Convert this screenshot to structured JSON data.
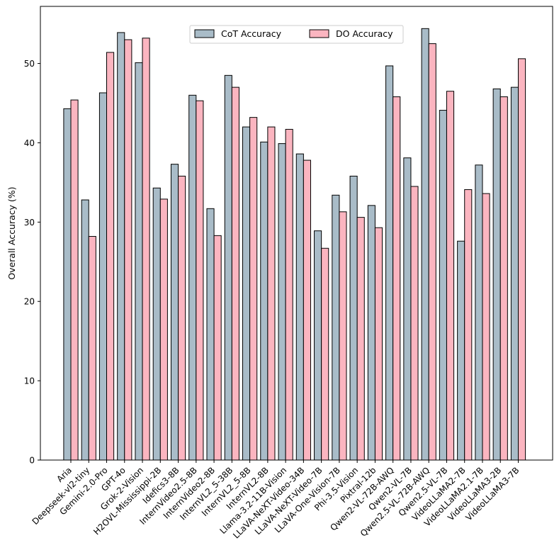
{
  "chart_data": {
    "type": "bar",
    "title": "",
    "xlabel": "",
    "ylabel": "Overall Accuracy (%)",
    "ylim": [
      0,
      57.2
    ],
    "yticks": [
      0,
      10,
      20,
      30,
      40,
      50
    ],
    "grid": false,
    "legend_position": "top-center",
    "categories": [
      "Aria",
      "Deepseek-vl2-tiny",
      "Gemini-2.0-Pro",
      "GPT-4o",
      "Grok-2-Vision",
      "H2OVL-Mississippi-2B",
      "Idefics3-8B",
      "InternVideo2.5-8B",
      "InternVideo2-8B",
      "InternVL2_5-38B",
      "InternVL2_5-8B",
      "InternVL2-8B",
      "Llama-3.2-11B-Vision",
      "LLaVA-NeXT-Video-34B",
      "LLaVA-NeXT-Video-7B",
      "LLaVA-One-Vision-7B",
      "Phi-3.5-Vision",
      "Pixtral-12b",
      "Qwen2-VL-72B-AWQ",
      "Qwen2-VL-7B",
      "Qwen2.5-VL-72B-AWQ",
      "Qwen2.5-VL-7B",
      "VideoLLaMA2-7B",
      "VideoLLaMA2.1-7B",
      "VideoLLaMA3-2B",
      "VideoLLaMA3-7B"
    ],
    "series": [
      {
        "name": "CoT Accuracy",
        "color": "#a9bcc8",
        "values": [
          44.3,
          32.8,
          46.3,
          53.9,
          50.1,
          34.3,
          37.3,
          46.0,
          31.7,
          48.5,
          42.0,
          40.1,
          39.9,
          38.6,
          28.9,
          33.4,
          35.8,
          32.1,
          49.7,
          38.1,
          54.4,
          44.1,
          27.6,
          37.2,
          46.8,
          47.0
        ]
      },
      {
        "name": "DO Accuracy",
        "color": "#fbb5c0",
        "values": [
          45.4,
          28.2,
          51.4,
          53.0,
          53.2,
          32.9,
          35.8,
          45.3,
          28.3,
          47.0,
          43.2,
          42.0,
          41.7,
          37.8,
          26.7,
          31.3,
          30.6,
          29.3,
          45.8,
          34.5,
          52.5,
          46.5,
          34.1,
          33.6,
          45.8,
          50.6
        ]
      }
    ]
  }
}
